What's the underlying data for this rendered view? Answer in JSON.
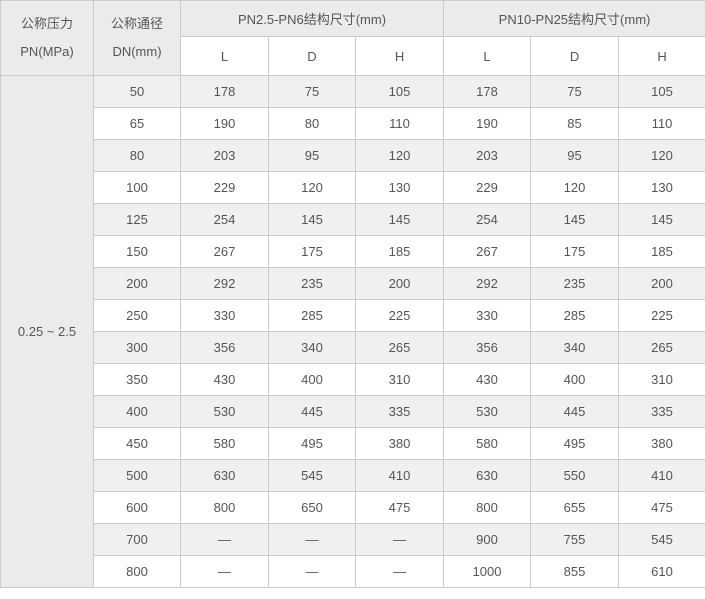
{
  "table": {
    "header": {
      "pressure_label": "公称压力",
      "pressure_unit": "PN(MPa)",
      "diameter_label": "公称通径",
      "diameter_unit": "DN(mm)",
      "group1_label": "PN2.5-PN6结构尺寸(mm)",
      "group2_label": "PN10-PN25结构尺寸(mm)",
      "sub_columns": [
        "L",
        "D",
        "H",
        "L",
        "D",
        "H"
      ]
    },
    "pn_range": "0.25 ~ 2.5",
    "rows": [
      [
        "50",
        "178",
        "75",
        "105",
        "178",
        "75",
        "105"
      ],
      [
        "65",
        "190",
        "80",
        "110",
        "190",
        "85",
        "110"
      ],
      [
        "80",
        "203",
        "95",
        "120",
        "203",
        "95",
        "120"
      ],
      [
        "100",
        "229",
        "120",
        "130",
        "229",
        "120",
        "130"
      ],
      [
        "125",
        "254",
        "145",
        "145",
        "254",
        "145",
        "145"
      ],
      [
        "150",
        "267",
        "175",
        "185",
        "267",
        "175",
        "185"
      ],
      [
        "200",
        "292",
        "235",
        "200",
        "292",
        "235",
        "200"
      ],
      [
        "250",
        "330",
        "285",
        "225",
        "330",
        "285",
        "225"
      ],
      [
        "300",
        "356",
        "340",
        "265",
        "356",
        "340",
        "265"
      ],
      [
        "350",
        "430",
        "400",
        "310",
        "430",
        "400",
        "310"
      ],
      [
        "400",
        "530",
        "445",
        "335",
        "530",
        "445",
        "335"
      ],
      [
        "450",
        "580",
        "495",
        "380",
        "580",
        "495",
        "380"
      ],
      [
        "500",
        "630",
        "545",
        "410",
        "630",
        "550",
        "410"
      ],
      [
        "600",
        "800",
        "650",
        "475",
        "800",
        "655",
        "475"
      ],
      [
        "700",
        "—",
        "—",
        "—",
        "900",
        "755",
        "545"
      ],
      [
        "800",
        "—",
        "—",
        "—",
        "1000",
        "855",
        "610"
      ]
    ]
  },
  "colors": {
    "header_bg": "#ebebeb",
    "stripe_bg": "#f0f0f0",
    "border": "#cbcbcb",
    "text": "#555555"
  }
}
